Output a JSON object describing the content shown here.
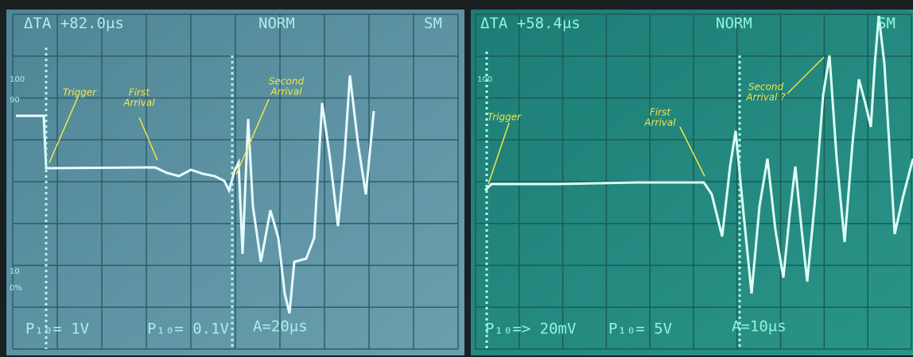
{
  "panels": [
    {
      "readout": {
        "delta": "ΔTA +82.0μs",
        "mode": "NORM",
        "sm": "SM"
      },
      "scale_labels": [
        "100",
        "90",
        "10",
        "0%"
      ],
      "settings": [
        "P₁₀= 1V",
        "P₁₀= 0.1V",
        "A=20μs"
      ],
      "annotations": [
        {
          "lines": [
            "Trigger"
          ]
        },
        {
          "lines": [
            "First",
            "Arrival"
          ]
        },
        {
          "lines": [
            "Second",
            "Arrival"
          ]
        }
      ]
    },
    {
      "readout": {
        "delta": "ΔTA +58.4μs",
        "mode": "NORM",
        "sm": "SM"
      },
      "scale_labels": [
        "100"
      ],
      "settings": [
        "P₁₀=> 20mV",
        "P₁₀= 5V",
        "A=10μs"
      ],
      "annotations": [
        {
          "lines": [
            "Trigger"
          ]
        },
        {
          "lines": [
            "First",
            "Arrival"
          ]
        },
        {
          "lines": [
            "Second",
            "Arrival ?"
          ]
        }
      ]
    }
  ]
}
